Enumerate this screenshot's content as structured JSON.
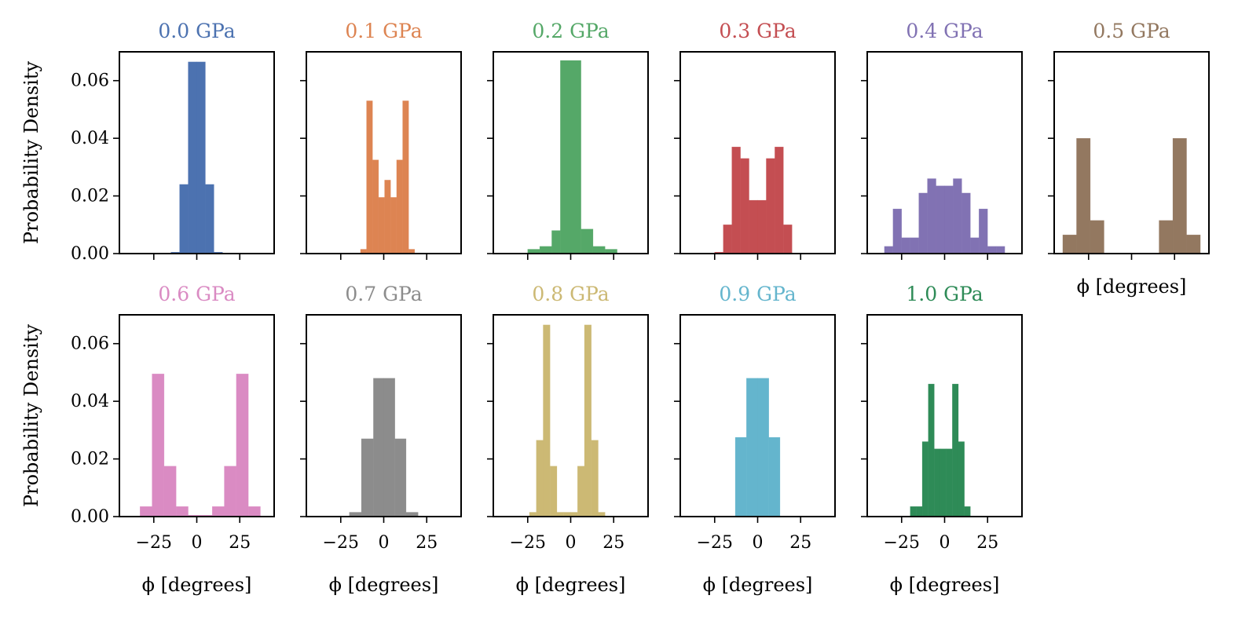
{
  "figure": {
    "ylabel": "Probability Density",
    "xlabel": "ϕ [degrees]",
    "xlim": [
      -45,
      45
    ],
    "ylim": [
      0,
      0.07
    ],
    "xticks": [
      -25,
      0,
      25
    ],
    "xtick_labels": [
      "−25",
      "0",
      "25"
    ],
    "yticks": [
      0.0,
      0.02,
      0.04,
      0.06
    ],
    "ytick_labels": [
      "0.00",
      "0.02",
      "0.04",
      "0.06"
    ]
  },
  "chart_data": [
    {
      "type": "bar",
      "title": "0.0 GPa",
      "color": "#4c72b0",
      "bin_width": 5,
      "bins": [
        [
          -15,
          -10,
          0.0005
        ],
        [
          -10,
          -5,
          0.024
        ],
        [
          -5,
          0,
          0.0665
        ],
        [
          0,
          5,
          0.0665
        ],
        [
          5,
          10,
          0.024
        ],
        [
          10,
          15,
          0.0005
        ]
      ]
    },
    {
      "type": "bar",
      "title": "0.1 GPa",
      "color": "#dd8452",
      "bin_width": 3.5,
      "bins": [
        [
          -10,
          -6.5,
          0.053
        ],
        [
          -6.5,
          -3,
          0.0325
        ],
        [
          -3,
          0.5,
          0.0195
        ],
        [
          0.5,
          4,
          0.0255
        ],
        [
          4,
          7.5,
          0.0195
        ],
        [
          7.5,
          11,
          0.0325
        ],
        [
          11,
          14.5,
          0.053
        ],
        [
          14.5,
          18,
          0.0015
        ],
        [
          -13.5,
          -10,
          0.0015
        ]
      ]
    },
    {
      "type": "bar",
      "title": "0.2 GPa",
      "color": "#55a868",
      "bin_width": 7.5,
      "bins": [
        [
          -25,
          -18,
          0.0015
        ],
        [
          -18,
          -11,
          0.0025
        ],
        [
          -11,
          -6,
          0.008
        ],
        [
          -6,
          6,
          0.067
        ],
        [
          6,
          13,
          0.0085
        ],
        [
          13,
          20,
          0.0025
        ],
        [
          20,
          27,
          0.0015
        ]
      ]
    },
    {
      "type": "bar",
      "title": "0.3 GPa",
      "color": "#c44e52",
      "bin_width": 5,
      "bins": [
        [
          -25,
          -20,
          0.0005
        ],
        [
          -20,
          -15,
          0.01
        ],
        [
          -15,
          -10,
          0.037
        ],
        [
          -10,
          -5,
          0.033
        ],
        [
          -5,
          0,
          0.0185
        ],
        [
          0,
          5,
          0.0185
        ],
        [
          5,
          10,
          0.033
        ],
        [
          10,
          15,
          0.037
        ],
        [
          15,
          20,
          0.01
        ]
      ]
    },
    {
      "type": "bar",
      "title": "0.4 GPa",
      "color": "#8172b3",
      "bin_width": 5,
      "bins": [
        [
          -35,
          -30,
          0.0025
        ],
        [
          -30,
          -25,
          0.0155
        ],
        [
          -25,
          -20,
          0.0055
        ],
        [
          -20,
          -15,
          0.0055
        ],
        [
          -15,
          -10,
          0.021
        ],
        [
          -10,
          -5,
          0.026
        ],
        [
          -5,
          0,
          0.0235
        ],
        [
          0,
          5,
          0.0235
        ],
        [
          5,
          10,
          0.026
        ],
        [
          10,
          15,
          0.021
        ],
        [
          15,
          20,
          0.0055
        ],
        [
          20,
          25,
          0.0155
        ],
        [
          25,
          30,
          0.0025
        ],
        [
          30,
          35,
          0.0025
        ]
      ]
    },
    {
      "type": "bar",
      "title": "0.5 GPa",
      "color": "#937860",
      "bin_width": 8,
      "bins": [
        [
          -40,
          -32,
          0.0065
        ],
        [
          -32,
          -24,
          0.04
        ],
        [
          -24,
          -16,
          0.0115
        ],
        [
          16,
          24,
          0.0115
        ],
        [
          24,
          32,
          0.04
        ],
        [
          32,
          40,
          0.0065
        ]
      ]
    },
    {
      "type": "bar",
      "title": "0.6 GPa",
      "color": "#da8bc3",
      "bin_width": 7,
      "bins": [
        [
          -33,
          -26,
          0.0035
        ],
        [
          -26,
          -19,
          0.0495
        ],
        [
          -19,
          -12,
          0.0175
        ],
        [
          -12,
          -5,
          0.0035
        ],
        [
          -5,
          2,
          0.0005
        ],
        [
          2,
          9,
          0.0005
        ],
        [
          9,
          16,
          0.0035
        ],
        [
          16,
          23,
          0.0175
        ],
        [
          23,
          30,
          0.0495
        ],
        [
          30,
          37,
          0.0035
        ]
      ]
    },
    {
      "type": "bar",
      "title": "0.7 GPa",
      "color": "#8c8c8c",
      "bin_width": 6.5,
      "bins": [
        [
          -20,
          -13,
          0.0015
        ],
        [
          -13,
          -6,
          0.027
        ],
        [
          -6,
          0,
          0.048
        ],
        [
          0,
          6.5,
          0.048
        ],
        [
          6.5,
          13,
          0.027
        ],
        [
          13,
          20,
          0.0015
        ]
      ]
    },
    {
      "type": "bar",
      "title": "0.8 GPa",
      "color": "#ccb974",
      "bin_width": 4,
      "bins": [
        [
          -24,
          -20,
          0.0015
        ],
        [
          -20,
          -16,
          0.0265
        ],
        [
          -16,
          -12,
          0.0665
        ],
        [
          -12,
          -8,
          0.0175
        ],
        [
          -8,
          -4,
          0.0015
        ],
        [
          -4,
          0,
          0.0015
        ],
        [
          0,
          4,
          0.0015
        ],
        [
          4,
          8,
          0.0175
        ],
        [
          8,
          12,
          0.0665
        ],
        [
          12,
          16,
          0.0265
        ],
        [
          16,
          20,
          0.0015
        ]
      ]
    },
    {
      "type": "bar",
      "title": "0.9 GPa",
      "color": "#64b5cd",
      "bin_width": 6.5,
      "bins": [
        [
          -13,
          -6.5,
          0.0275
        ],
        [
          -6.5,
          0,
          0.048
        ],
        [
          0,
          6.5,
          0.048
        ],
        [
          6.5,
          13,
          0.0275
        ]
      ]
    },
    {
      "type": "bar",
      "title": "1.0 GPa",
      "color": "#2e8b57",
      "bin_width": 3.5,
      "bins": [
        [
          -20,
          -16.5,
          0.0035
        ],
        [
          -16.5,
          -13,
          0.0035
        ],
        [
          -13,
          -9.5,
          0.026
        ],
        [
          -9.5,
          -6,
          0.046
        ],
        [
          -6,
          -2.5,
          0.0235
        ],
        [
          -2.5,
          1,
          0.0235
        ],
        [
          1,
          4.5,
          0.0235
        ],
        [
          4.5,
          8,
          0.046
        ],
        [
          8,
          11.5,
          0.026
        ],
        [
          11.5,
          15,
          0.0035
        ]
      ]
    }
  ]
}
